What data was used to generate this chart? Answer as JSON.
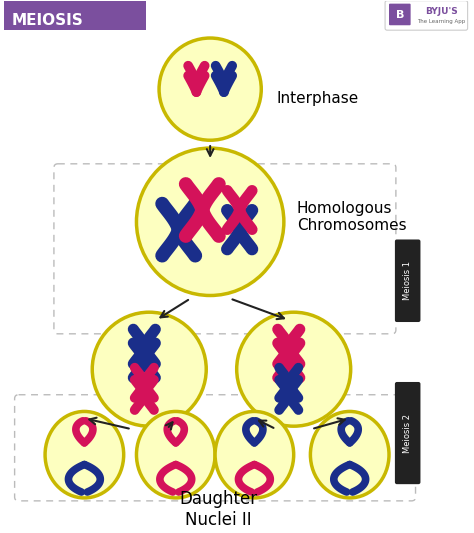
{
  "title": "MEIOSIS",
  "title_bg": "#7B4F9E",
  "title_color": "#FFFFFF",
  "bg_color": "#FFFFFF",
  "cell_fill": "#FDFFC0",
  "cell_edge": "#C8B800",
  "pink": "#D4125A",
  "blue": "#1A2E8A",
  "arrow_color": "#222222",
  "dashed_color": "#BBBBBB",
  "label_interphase": "Interphase",
  "label_homologous": "Homologous\nChromosomes",
  "label_daughter": "Daughter\nNuclei II",
  "label_meiosis1": "Meiosis 1",
  "label_meiosis2": "Meiosis 2",
  "meiosis_tag_color": "#222222",
  "meiosis_tag_text": "#FFFFFF",
  "byju_color": "#7B4F9E"
}
